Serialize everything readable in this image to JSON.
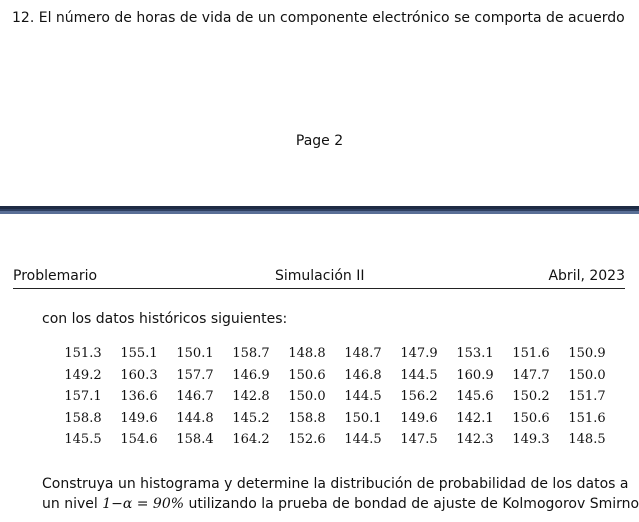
{
  "previous_page": {
    "problem_number": "12.",
    "problem_text": "El número de horas de vida de un componente electrónico se comporta de acuerdo",
    "page_label": "Page 2"
  },
  "header": {
    "left": "Problemario",
    "center": "Simulación II",
    "right": "Abril, 2023"
  },
  "intro_text": "con los datos históricos siguientes:",
  "data_rows": [
    [
      "151.3",
      "155.1",
      "150.1",
      "158.7",
      "148.8",
      "148.7",
      "147.9",
      "153.1",
      "151.6",
      "150.9"
    ],
    [
      "149.2",
      "160.3",
      "157.7",
      "146.9",
      "150.6",
      "146.8",
      "144.5",
      "160.9",
      "147.7",
      "150.0"
    ],
    [
      "157.1",
      "136.6",
      "146.7",
      "142.8",
      "150.0",
      "144.5",
      "156.2",
      "145.6",
      "150.2",
      "151.7"
    ],
    [
      "158.8",
      "149.6",
      "144.8",
      "145.2",
      "158.8",
      "150.1",
      "149.6",
      "142.1",
      "150.6",
      "151.6"
    ],
    [
      "145.5",
      "154.6",
      "158.4",
      "164.2",
      "152.6",
      "144.5",
      "147.5",
      "142.3",
      "149.3",
      "148.5"
    ]
  ],
  "conclusion": {
    "line1": "Construya un histograma y determine la distribución de probabilidad de los datos a",
    "line2_prefix": "un nivel ",
    "math": "1−α = 90%",
    "line2_suffix": " utilizando la prueba de bondad de ajuste de Kolmogorov Smirnov"
  }
}
